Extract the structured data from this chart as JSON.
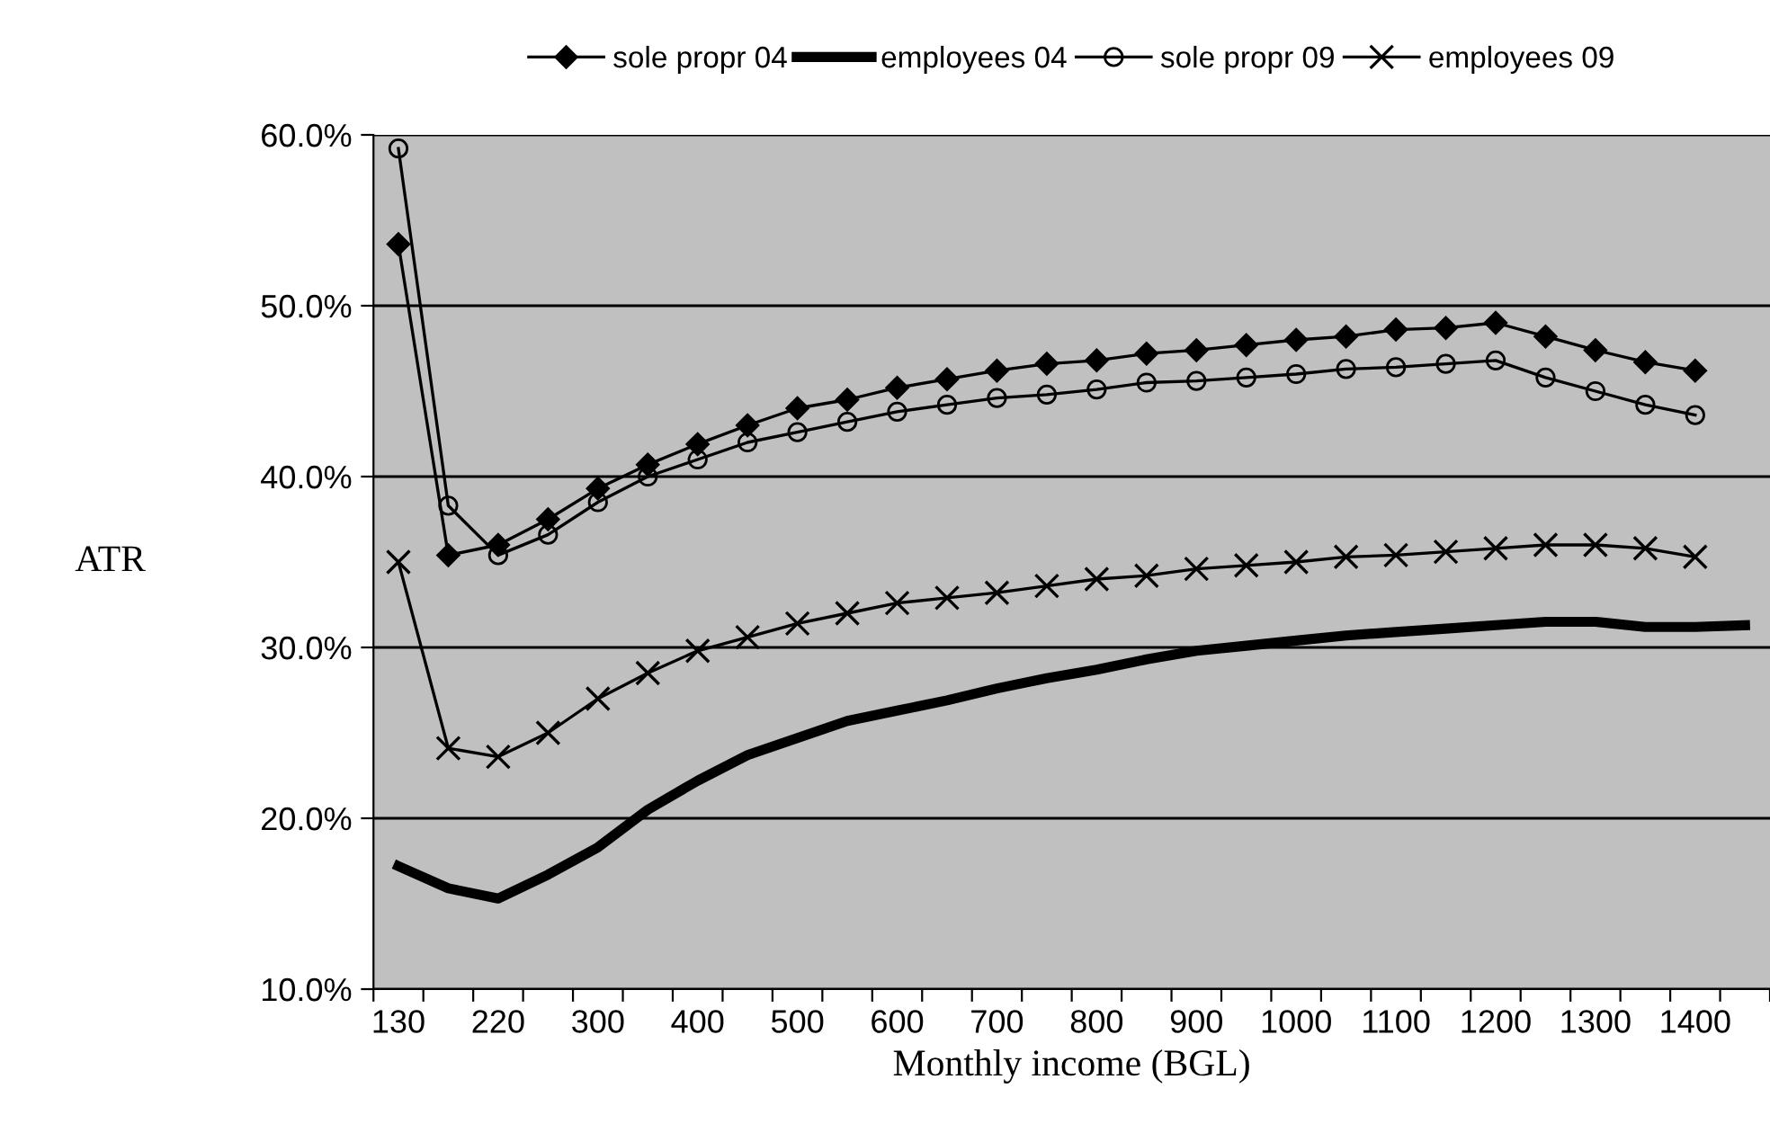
{
  "chart_data": {
    "type": "line",
    "xlabel": "Monthly income (BGL)",
    "ylabel": "ATR",
    "categories": [
      "130",
      null,
      "220",
      null,
      "300",
      null,
      "400",
      null,
      "500",
      null,
      "600",
      null,
      "700",
      null,
      "800",
      null,
      "900",
      null,
      "1000",
      null,
      "1100",
      null,
      "1200",
      null,
      "1300",
      null,
      "1400",
      null
    ],
    "series": [
      {
        "name": "sole propr 04",
        "color": "#000000",
        "marker": "diamond",
        "values": [
          53.6,
          35.4,
          36.0,
          37.5,
          39.3,
          40.7,
          41.9,
          43.0,
          44.0,
          44.5,
          45.2,
          45.7,
          46.2,
          46.6,
          46.8,
          47.2,
          47.4,
          47.7,
          48.0,
          48.2,
          48.6,
          48.7,
          49.0,
          48.2,
          47.4,
          46.7,
          46.2,
          null
        ]
      },
      {
        "name": "employees 04",
        "color": "#000000",
        "marker": "none",
        "values": [
          17.2,
          15.9,
          15.3,
          16.7,
          18.3,
          20.5,
          22.2,
          23.7,
          24.7,
          25.7,
          26.3,
          26.9,
          27.6,
          28.2,
          28.7,
          29.3,
          29.8,
          30.1,
          30.4,
          30.7,
          30.9,
          31.1,
          31.3,
          31.5,
          31.5,
          31.2,
          31.2,
          31.3
        ]
      },
      {
        "name": "sole propr 09",
        "color": "#000000",
        "marker": "circle",
        "values": [
          59.2,
          38.3,
          35.4,
          36.6,
          38.5,
          40.0,
          41.0,
          42.0,
          42.6,
          43.2,
          43.8,
          44.2,
          44.6,
          44.8,
          45.1,
          45.5,
          45.6,
          45.8,
          46.0,
          46.3,
          46.4,
          46.6,
          46.8,
          45.8,
          45.0,
          44.2,
          43.6,
          null
        ]
      },
      {
        "name": "employees 09",
        "color": "#000000",
        "marker": "cross",
        "values": [
          35.0,
          24.1,
          23.6,
          25.0,
          27.0,
          28.5,
          29.8,
          30.6,
          31.4,
          32.0,
          32.6,
          32.9,
          33.2,
          33.6,
          34.0,
          34.2,
          34.6,
          34.8,
          35.0,
          35.3,
          35.4,
          35.6,
          35.8,
          36.0,
          36.0,
          35.8,
          35.3,
          null
        ]
      }
    ],
    "ylim": [
      10,
      60
    ],
    "yticks": [
      {
        "value": 10,
        "label": "10.0%"
      },
      {
        "value": 20,
        "label": "20.0%"
      },
      {
        "value": 30,
        "label": "30.0%"
      },
      {
        "value": 40,
        "label": "40.0%"
      },
      {
        "value": 50,
        "label": "50.0%"
      },
      {
        "value": 60,
        "label": "60.0%"
      }
    ],
    "grid": "y",
    "legend": "top",
    "line_style": "solid"
  }
}
